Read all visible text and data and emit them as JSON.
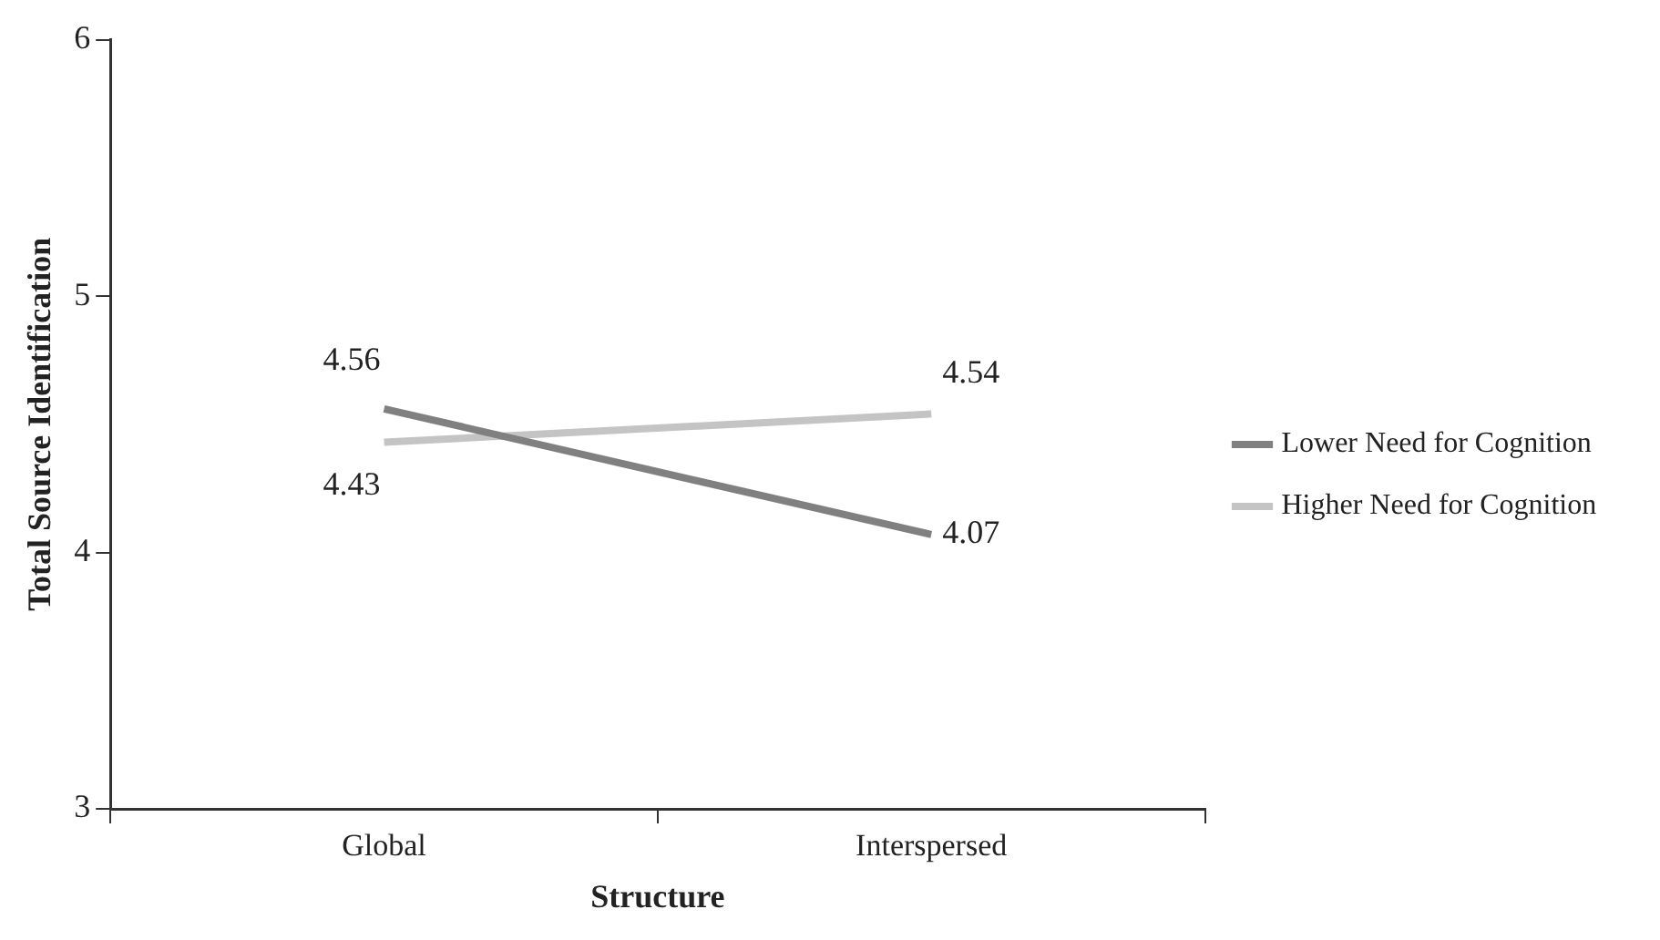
{
  "chart_data": {
    "type": "line",
    "xlabel": "Structure",
    "ylabel": "Total Source Identification",
    "categories": [
      "Global",
      "Interspersed"
    ],
    "series": [
      {
        "name": "Lower Need for Cognition",
        "color": "#808080",
        "values": [
          4.56,
          4.07
        ]
      },
      {
        "name": "Higher Need for Cognition",
        "color": "#c4c4c4",
        "values": [
          4.43,
          4.54
        ]
      }
    ],
    "ylim": [
      3,
      6
    ],
    "yticks": [
      3,
      4,
      5,
      6
    ],
    "grid": false,
    "legend": "right",
    "marker": "none",
    "line_style": "solid",
    "data_labels": true
  }
}
